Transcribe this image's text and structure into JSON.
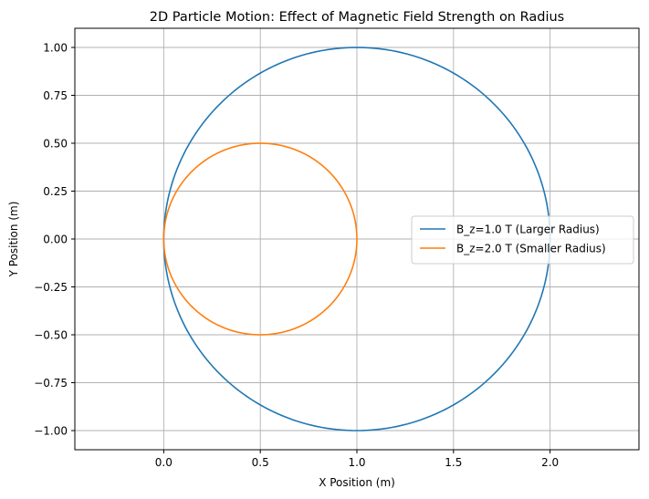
{
  "chart_data": {
    "type": "line",
    "title": "2D Particle Motion: Effect of Magnetic Field Strength on Radius",
    "xlabel": "X Position (m)",
    "ylabel": "Y Position (m)",
    "xlim": [
      -0.46,
      2.46
    ],
    "ylim": [
      -1.1,
      1.1
    ],
    "xticks": [
      0.0,
      0.5,
      1.0,
      1.5,
      2.0
    ],
    "xtick_labels": [
      "0.0",
      "0.5",
      "1.0",
      "1.5",
      "2.0"
    ],
    "yticks": [
      -1.0,
      -0.75,
      -0.5,
      -0.25,
      0.0,
      0.25,
      0.5,
      0.75,
      1.0
    ],
    "ytick_labels": [
      "−1.00",
      "−0.75",
      "−0.50",
      "−0.25",
      "0.00",
      "0.25",
      "0.50",
      "0.75",
      "1.00"
    ],
    "grid": true,
    "legend_position": "center-right",
    "series": [
      {
        "name": "B_z=1.0 T (Larger Radius)",
        "color": "#1f77b4",
        "shape": "circle",
        "center": [
          1.0,
          0.0
        ],
        "radius": 1.0
      },
      {
        "name": "B_z=2.0 T (Smaller Radius)",
        "color": "#ff7f0e",
        "shape": "circle",
        "center": [
          0.5,
          0.0
        ],
        "radius": 0.5
      }
    ]
  }
}
